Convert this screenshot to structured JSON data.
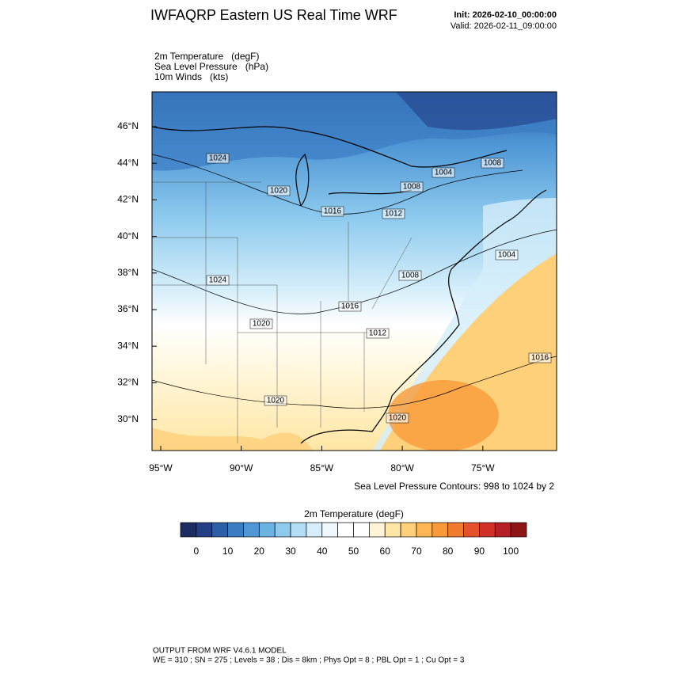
{
  "header": {
    "title": "IWFAQRP Eastern US Real Time WRF",
    "init": "Init: 2026-02-10_00:00:00",
    "valid": "Valid: 2026-02-11_09:00:00"
  },
  "fields": [
    "2m Temperature   (degF)",
    "Sea Level Pressure   (hPa)",
    "10m Winds   (kts)"
  ],
  "map": {
    "lat_labels": [
      "46°N",
      "44°N",
      "42°N",
      "40°N",
      "38°N",
      "36°N",
      "34°N",
      "32°N",
      "30°N"
    ],
    "lon_labels": [
      "95°W",
      "90°W",
      "85°W",
      "80°W",
      "75°W"
    ],
    "contour_labels": [
      1024,
      1020,
      1016,
      1012,
      1008,
      1004,
      1008,
      1004,
      1024,
      1020,
      1016,
      1012,
      1008,
      1016,
      1020,
      1020
    ],
    "contour_note": "Sea Level Pressure Contours: 998 to 1024 by 2"
  },
  "colorbar": {
    "title": "2m Temperature  (degF)",
    "lim": [
      -5,
      105
    ],
    "colors": [
      "#1c2b60",
      "#233f86",
      "#2d5fa8",
      "#3b7cc3",
      "#4f97d5",
      "#6cb2e3",
      "#8dcaee",
      "#b2ddf4",
      "#d5eefa",
      "#eef8fd",
      "#ffffff",
      "#ffffff",
      "#fff5d6",
      "#ffe6a4",
      "#fed07a",
      "#fdb653",
      "#f99a3a",
      "#f07a2e",
      "#e4522b",
      "#d03028",
      "#b51f25",
      "#8e1515"
    ],
    "ticks": [
      0,
      10,
      20,
      30,
      40,
      50,
      60,
      70,
      80,
      90,
      100
    ]
  },
  "footer": {
    "line1": "OUTPUT FROM WRF V4.6.1 MODEL",
    "line2": "WE = 310 ; SN = 275 ; Levels = 38 ; Dis = 8km ; Phys Opt = 8 ; PBL Opt = 1 ; Cu Opt = 3"
  }
}
